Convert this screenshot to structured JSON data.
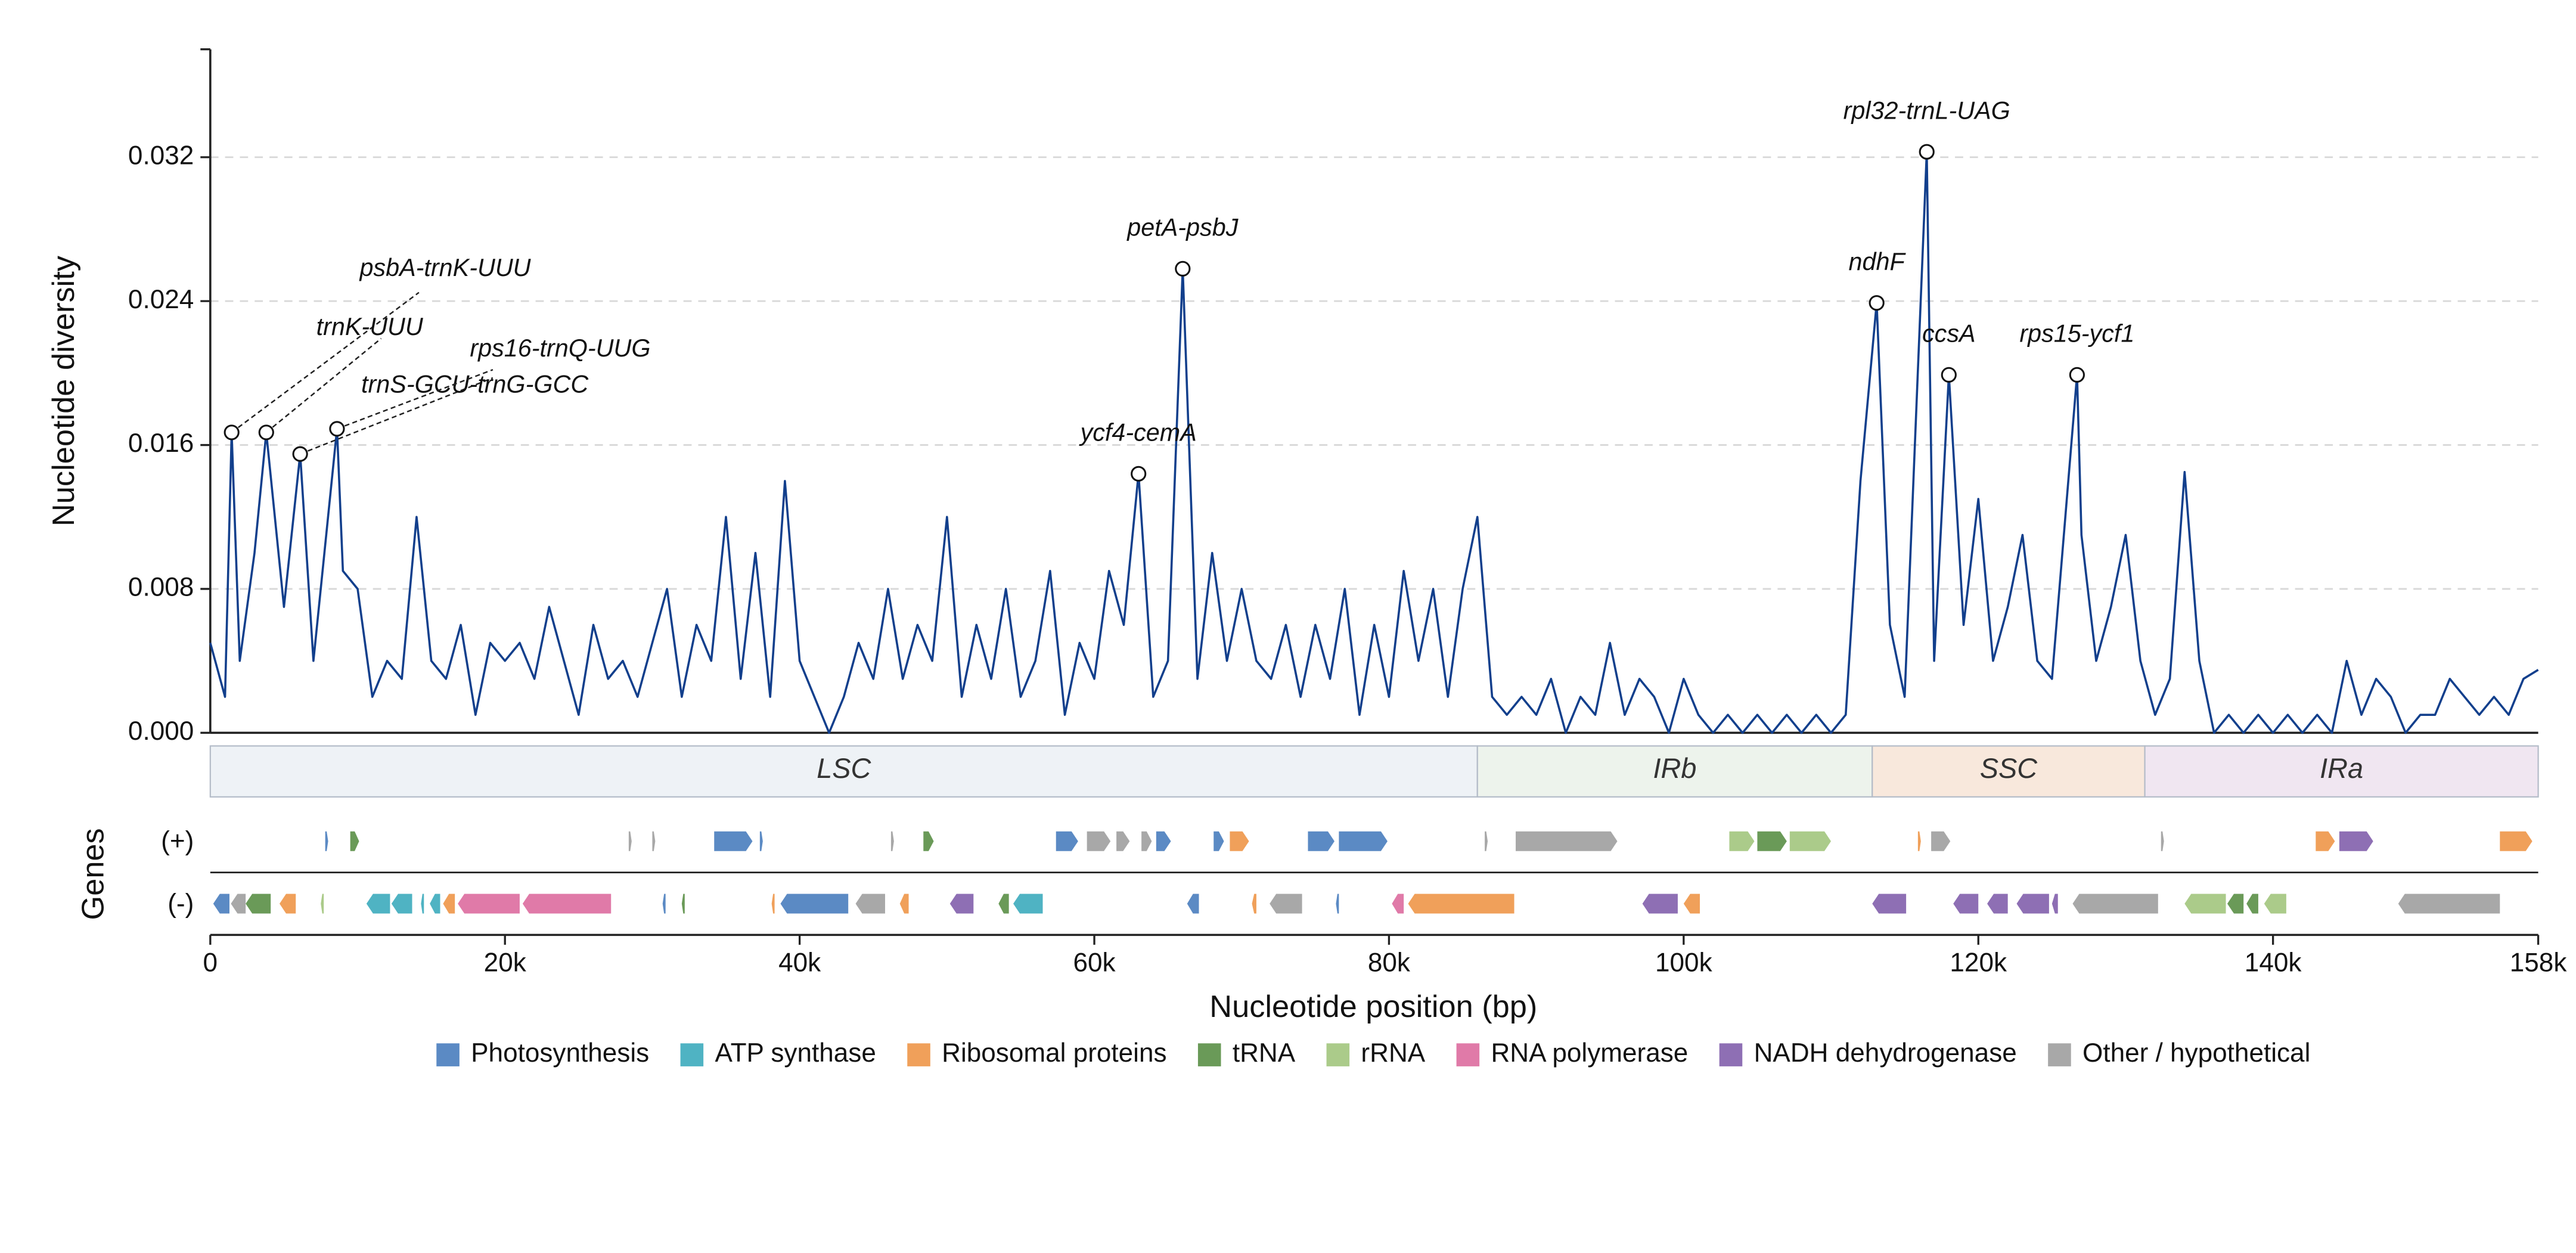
{
  "chart_data": {
    "type": "line",
    "color": "#123f8c",
    "ylabel": "Nucleotide diversity",
    "xlabel": "Nucleotide position (bp)",
    "track_label": "Genes",
    "strand_labels": [
      "(+)",
      "(-)"
    ],
    "ylim": [
      0,
      0.038
    ],
    "yticks": [
      {
        "value": 0,
        "label": "0.000"
      },
      {
        "value": 0.008,
        "label": "0.008"
      },
      {
        "value": 0.016,
        "label": "0.016"
      },
      {
        "value": 0.024,
        "label": "0.024"
      },
      {
        "value": 0.032,
        "label": "0.032"
      }
    ],
    "xlim": [
      0,
      158000
    ],
    "xticks": [
      0,
      {
        "value": 20000,
        "label": "20k"
      },
      {
        "value": 40000,
        "label": "40k"
      },
      {
        "value": 60000,
        "label": "60k"
      },
      {
        "value": 80000,
        "label": "80k"
      },
      {
        "value": 100000,
        "label": "100k"
      },
      {
        "value": 120000,
        "label": "120k"
      },
      {
        "value": 140000,
        "label": "140k"
      },
      {
        "value": 158000,
        "label": "158k"
      }
    ],
    "grid": true,
    "x": [
      0,
      1000,
      1450,
      2000,
      3000,
      3800,
      5000,
      6100,
      7000,
      8600,
      9000,
      10000,
      11000,
      12000,
      13000,
      14000,
      15000,
      16000,
      17000,
      18000,
      19000,
      20000,
      21000,
      22000,
      23000,
      24000,
      25000,
      26000,
      27000,
      28000,
      29000,
      30000,
      31000,
      32000,
      33000,
      34000,
      35000,
      36000,
      37000,
      38000,
      39000,
      40000,
      41000,
      42000,
      43000,
      44000,
      45000,
      46000,
      47000,
      48000,
      49000,
      50000,
      51000,
      52000,
      53000,
      54000,
      55000,
      56000,
      57000,
      58000,
      59000,
      60000,
      61000,
      62000,
      63000,
      64000,
      65000,
      66000,
      67000,
      68000,
      69000,
      70000,
      71000,
      72000,
      73000,
      74000,
      75000,
      76000,
      77000,
      78000,
      79000,
      80000,
      81000,
      82000,
      83000,
      84000,
      85000,
      86000,
      87000,
      88000,
      89000,
      90000,
      91000,
      92000,
      93000,
      94000,
      95000,
      96000,
      97000,
      98000,
      99000,
      100000,
      101000,
      102000,
      103000,
      104000,
      105000,
      106000,
      107000,
      108000,
      109000,
      110000,
      111000,
      112000,
      113100,
      114000,
      115000,
      116500,
      117000,
      118000,
      119000,
      120000,
      121000,
      122000,
      123000,
      124000,
      125000,
      126700,
      127000,
      128000,
      129000,
      130000,
      131000,
      132000,
      133000,
      134000,
      135000,
      136000,
      137000,
      138000,
      139000,
      140000,
      141000,
      142000,
      143000,
      144000,
      145000,
      146000,
      147000,
      148000,
      149000,
      150000,
      151000,
      152000,
      153000,
      154000,
      155000,
      156000,
      157000,
      158000
    ],
    "values": [
      0.005,
      0.002,
      0.0167,
      0.004,
      0.01,
      0.0167,
      0.007,
      0.0155,
      0.004,
      0.0169,
      0.009,
      0.008,
      0.002,
      0.004,
      0.003,
      0.012,
      0.004,
      0.003,
      0.006,
      0.001,
      0.005,
      0.004,
      0.005,
      0.003,
      0.007,
      0.004,
      0.001,
      0.006,
      0.003,
      0.004,
      0.002,
      0.005,
      0.008,
      0.002,
      0.006,
      0.004,
      0.012,
      0.003,
      0.01,
      0.002,
      0.014,
      0.004,
      0.002,
      0.0,
      0.002,
      0.005,
      0.003,
      0.008,
      0.003,
      0.006,
      0.004,
      0.012,
      0.002,
      0.006,
      0.003,
      0.008,
      0.002,
      0.004,
      0.009,
      0.001,
      0.005,
      0.003,
      0.009,
      0.006,
      0.0144,
      0.002,
      0.004,
      0.0258,
      0.003,
      0.01,
      0.004,
      0.008,
      0.004,
      0.003,
      0.006,
      0.002,
      0.006,
      0.003,
      0.008,
      0.001,
      0.006,
      0.002,
      0.009,
      0.004,
      0.008,
      0.002,
      0.008,
      0.012,
      0.002,
      0.001,
      0.002,
      0.001,
      0.003,
      0.0,
      0.002,
      0.001,
      0.005,
      0.001,
      0.003,
      0.002,
      0.0,
      0.003,
      0.001,
      0.0,
      0.001,
      0.0,
      0.001,
      0.0,
      0.001,
      0.0,
      0.001,
      0.0,
      0.001,
      0.014,
      0.0239,
      0.006,
      0.002,
      0.0323,
      0.004,
      0.0199,
      0.006,
      0.013,
      0.004,
      0.007,
      0.011,
      0.004,
      0.003,
      0.0199,
      0.011,
      0.004,
      0.007,
      0.011,
      0.004,
      0.001,
      0.003,
      0.0145,
      0.004,
      0.0,
      0.001,
      0.0,
      0.001,
      0.0,
      0.001,
      0.0,
      0.001,
      0.0,
      0.004,
      0.001,
      0.003,
      0.002,
      0.0,
      0.001,
      0.001,
      0.003,
      0.002,
      0.001,
      0.002,
      0.001,
      0.003,
      0.0035
    ],
    "annotations": [
      {
        "label": "psbA-trnK-UUU",
        "x": 1450,
        "y": 0.0167
      },
      {
        "label": "trnK-UUU",
        "x": 3800,
        "y": 0.0167
      },
      {
        "label": "trnS-GCU-trnG-GCC",
        "x": 6100,
        "y": 0.0155
      },
      {
        "label": "rps16-trnQ-UUG",
        "x": 8600,
        "y": 0.0169
      },
      {
        "label": "ycf4-cemA",
        "x": 63000,
        "y": 0.0144
      },
      {
        "label": "petA-psbJ",
        "x": 66000,
        "y": 0.0258
      },
      {
        "label": "ndhF",
        "x": 113100,
        "y": 0.0239
      },
      {
        "label": "rpl32-trnL-UAG",
        "x": 116500,
        "y": 0.0323
      },
      {
        "label": "ccsA",
        "x": 118000,
        "y": 0.0199
      },
      {
        "label": "rps15-ycf1",
        "x": 126700,
        "y": 0.0199
      }
    ],
    "regions": [
      {
        "name": "LSC",
        "start": 0,
        "end": 86000,
        "color": "#eef2f6"
      },
      {
        "name": "IRb",
        "start": 86000,
        "end": 112800,
        "color": "#edf3ec"
      },
      {
        "name": "SSC",
        "start": 112800,
        "end": 131300,
        "color": "#f8e8dc"
      },
      {
        "name": "IRa",
        "start": 131300,
        "end": 158000,
        "color": "#f0e6f1"
      }
    ],
    "gene_groups": [
      {
        "name": "Photosynthesis",
        "color": "#5b8ac4"
      },
      {
        "name": "ATP synthase",
        "color": "#4fb3c3"
      },
      {
        "name": "Ribosomal proteins",
        "color": "#f0a05a"
      },
      {
        "name": "tRNA",
        "color": "#6a9a58"
      },
      {
        "name": "rRNA",
        "color": "#abcb8a"
      },
      {
        "name": "RNA polymerase",
        "color": "#e07aa8"
      },
      {
        "name": "NADH dehydrogenase",
        "color": "#8e6fb4"
      },
      {
        "name": "Other / hypothetical",
        "color": "#a8a8a8"
      }
    ],
    "genes_plus": [
      [
        7800,
        8000,
        0
      ],
      [
        9500,
        10100,
        3
      ],
      [
        28400,
        28600,
        7
      ],
      [
        30000,
        30200,
        7
      ],
      [
        34200,
        36800,
        0
      ],
      [
        37300,
        37500,
        0
      ],
      [
        46200,
        46400,
        7
      ],
      [
        48400,
        49100,
        3
      ],
      [
        57400,
        58900,
        0
      ],
      [
        59500,
        61100,
        7
      ],
      [
        61500,
        62400,
        7
      ],
      [
        63200,
        63900,
        7
      ],
      [
        64200,
        65200,
        0
      ],
      [
        68100,
        68800,
        0
      ],
      [
        69200,
        70500,
        2
      ],
      [
        74500,
        76300,
        0
      ],
      [
        76600,
        79900,
        0
      ],
      [
        86500,
        86700,
        7
      ],
      [
        88600,
        95500,
        7
      ],
      [
        103100,
        104800,
        4
      ],
      [
        105000,
        107000,
        3
      ],
      [
        107200,
        110000,
        4
      ],
      [
        115900,
        116100,
        2
      ],
      [
        116800,
        118100,
        7
      ],
      [
        132400,
        132600,
        7
      ],
      [
        142900,
        144200,
        2
      ],
      [
        144500,
        146800,
        6
      ],
      [
        155400,
        157600,
        2
      ]
    ],
    "genes_minus": [
      [
        200,
        1300,
        0
      ],
      [
        1400,
        2400,
        7
      ],
      [
        2400,
        4100,
        3
      ],
      [
        4700,
        5800,
        2
      ],
      [
        7500,
        7700,
        4
      ],
      [
        10600,
        12200,
        1
      ],
      [
        12300,
        13700,
        1
      ],
      [
        14300,
        14500,
        1
      ],
      [
        14900,
        15600,
        1
      ],
      [
        15800,
        16600,
        2
      ],
      [
        16800,
        21000,
        5
      ],
      [
        21200,
        27200,
        5
      ],
      [
        30700,
        30900,
        0
      ],
      [
        32000,
        32200,
        3
      ],
      [
        38100,
        38300,
        2
      ],
      [
        38700,
        43300,
        0
      ],
      [
        43800,
        45800,
        7
      ],
      [
        46800,
        47400,
        2
      ],
      [
        50200,
        51800,
        6
      ],
      [
        53500,
        54200,
        3
      ],
      [
        54500,
        56500,
        1
      ],
      [
        66300,
        67100,
        0
      ],
      [
        70700,
        71000,
        2
      ],
      [
        71900,
        74100,
        7
      ],
      [
        76400,
        76600,
        0
      ],
      [
        80200,
        81000,
        5
      ],
      [
        81300,
        88500,
        2
      ],
      [
        97200,
        99600,
        6
      ],
      [
        100000,
        101100,
        2
      ],
      [
        112800,
        115100,
        6
      ],
      [
        118300,
        120000,
        6
      ],
      [
        120600,
        122000,
        6
      ],
      [
        122600,
        124800,
        6
      ],
      [
        125000,
        125400,
        6
      ],
      [
        126400,
        132200,
        7
      ],
      [
        134000,
        136800,
        4
      ],
      [
        136900,
        138000,
        3
      ],
      [
        138200,
        139000,
        3
      ],
      [
        139400,
        140900,
        4
      ],
      [
        148500,
        155400,
        7
      ]
    ]
  }
}
